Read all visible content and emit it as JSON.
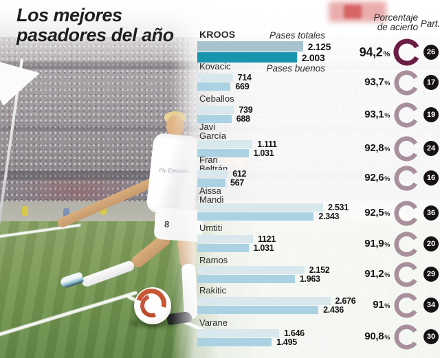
{
  "title": {
    "line1": "Los mejores",
    "line2": "pasadores del año"
  },
  "headers": {
    "pases_totales": "Pases totales",
    "pases_buenos": "Pases buenos",
    "porcentaje_line1": "Porcentaje",
    "porcentaje_line2": "de acierto",
    "part": "Part.",
    "percent_sign": "%"
  },
  "photo": {
    "jersey_line1": "Fly",
    "jersey_line2": "Emirates",
    "shorts_number": "8"
  },
  "colors": {
    "bar_total_light": "#d9e8ed",
    "bar_buenos_light": "#abd2e2",
    "bar_total_kroos": "#a6c3cd",
    "bar_buenos_kroos": "#1795ad",
    "donut": "#a78f9b",
    "donut_kroos": "#6b1d46",
    "badge_bg": "#161214"
  },
  "chart_data": {
    "type": "bar",
    "title": "Los mejores pasadores del año",
    "series_labels": [
      "Pases totales",
      "Pases buenos"
    ],
    "value_axis_max": 2700,
    "legend_position": "inline-first-row",
    "grid": false,
    "players": [
      {
        "name_line1": "KROOS",
        "name_line2": "",
        "total": 2125,
        "total_label": "2.125",
        "buenos": 2003,
        "buenos_label": "2.003",
        "pct": 94.2,
        "pct_label": "94,2",
        "part": "26"
      },
      {
        "name_line1": "Kovacic",
        "name_line2": "",
        "total": 714,
        "total_label": "714",
        "buenos": 669,
        "buenos_label": "669",
        "pct": 93.7,
        "pct_label": "93,7",
        "part": "17"
      },
      {
        "name_line1": "Ceballos",
        "name_line2": "",
        "total": 739,
        "total_label": "739",
        "buenos": 688,
        "buenos_label": "688",
        "pct": 93.1,
        "pct_label": "93,1",
        "part": "19"
      },
      {
        "name_line1": "Javi",
        "name_line2": "García",
        "total": 1111,
        "total_label": "1.111",
        "buenos": 1031,
        "buenos_label": "1.031",
        "pct": 92.8,
        "pct_label": "92,8",
        "part": "24"
      },
      {
        "name_line1": "Fran",
        "name_line2": "Beltrán",
        "total": 612,
        "total_label": "612",
        "buenos": 567,
        "buenos_label": "567",
        "pct": 92.6,
        "pct_label": "92,6",
        "part": "16"
      },
      {
        "name_line1": "Aissa",
        "name_line2": "Mandi",
        "total": 2531,
        "total_label": "2.531",
        "buenos": 2343,
        "buenos_label": "2.343",
        "pct": 92.5,
        "pct_label": "92,5",
        "part": "36"
      },
      {
        "name_line1": "Umtiti",
        "name_line2": "",
        "total": 1121,
        "total_label": "1121",
        "buenos": 1031,
        "buenos_label": "1.031",
        "pct": 91.9,
        "pct_label": "91,9",
        "part": "20"
      },
      {
        "name_line1": "Ramos",
        "name_line2": "",
        "total": 2152,
        "total_label": "2.152",
        "buenos": 1963,
        "buenos_label": "1.963",
        "pct": 91.2,
        "pct_label": "91,2",
        "part": "29"
      },
      {
        "name_line1": "Rakitic",
        "name_line2": "",
        "total": 2676,
        "total_label": "2.676",
        "buenos": 2436,
        "buenos_label": "2.436",
        "pct": 91.0,
        "pct_label": "91",
        "part": "34"
      },
      {
        "name_line1": "Varane",
        "name_line2": "",
        "total": 1646,
        "total_label": "1.646",
        "buenos": 1495,
        "buenos_label": "1.495",
        "pct": 90.8,
        "pct_label": "90,8",
        "part": "30"
      }
    ]
  }
}
